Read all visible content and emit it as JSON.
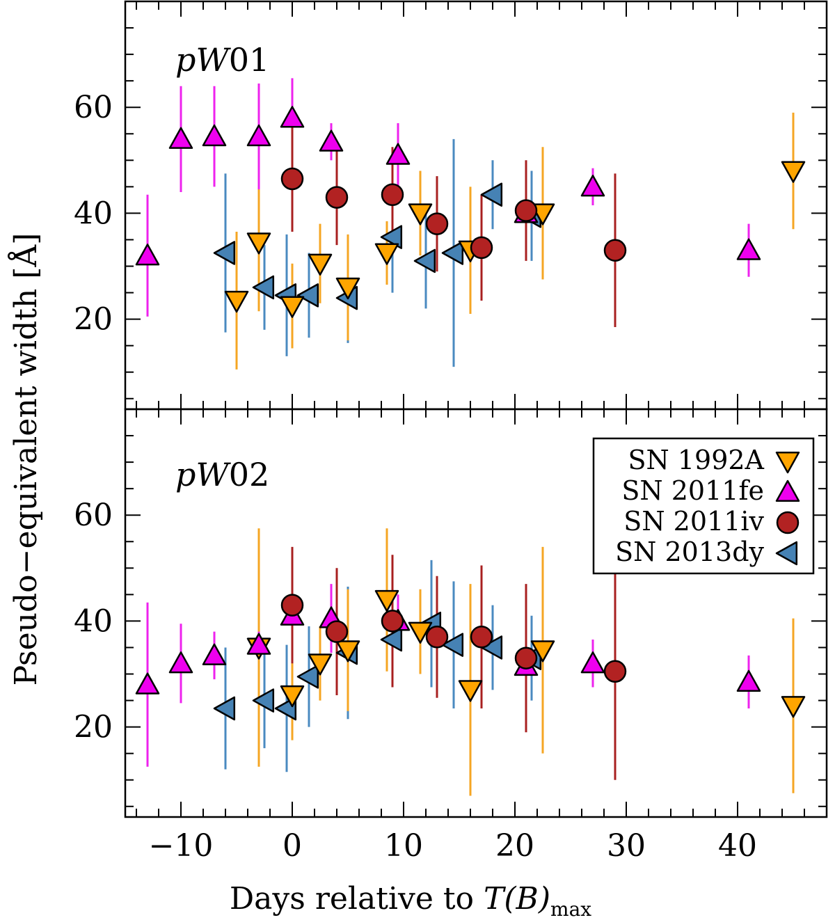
{
  "chart_data": {
    "type": "scatter",
    "xlabel": "Days relative to T(B)max",
    "xlabel_parts": {
      "prefix": "Days relative to ",
      "var": "T(B)",
      "sub": "max"
    },
    "ylabel": "Pseudo−equivalent width [Å]",
    "xlim": [
      -15,
      48
    ],
    "x_ticks": [
      -10,
      0,
      10,
      20,
      30,
      40
    ],
    "x_tick_labels": [
      "−10",
      "0",
      "10",
      "20",
      "30",
      "40"
    ],
    "legend": {
      "placement": "upper-right of bottom panel",
      "entries": [
        {
          "label": "SN 1992A",
          "series": "SN 1992A"
        },
        {
          "label": "SN 2011fe",
          "series": "SN 2011fe"
        },
        {
          "label": "SN 2011iv",
          "series": "SN 2011iv"
        },
        {
          "label": "SN 2013dy",
          "series": "SN 2013dy"
        }
      ]
    },
    "series_styles": [
      {
        "name": "SN 1992A",
        "marker": "triangle-down",
        "color": "#FFA500",
        "errcolor": "#F5A623"
      },
      {
        "name": "SN 2011fe",
        "marker": "triangle-up",
        "color": "#EE00EE",
        "errcolor": "#EE22EE"
      },
      {
        "name": "SN 2011iv",
        "marker": "circle",
        "color": "#B22222",
        "errcolor": "#A82020"
      },
      {
        "name": "SN 2013dy",
        "marker": "triangle-left",
        "color": "#4682B4",
        "errcolor": "#4A8AC0"
      }
    ],
    "panels": [
      {
        "label": "pW01",
        "label_parts": {
          "ital": "pW",
          "rest": "01"
        },
        "ylim": [
          3,
          80
        ],
        "y_ticks": [
          20,
          40,
          60
        ],
        "y_tick_labels": [
          "20",
          "40",
          "60"
        ],
        "series": [
          {
            "name": "SN 1992A",
            "points": [
              {
                "x": -5.0,
                "y": 23.5,
                "err": 13.0
              },
              {
                "x": -3.0,
                "y": 34.5,
                "err": 13.0
              },
              {
                "x": 0.0,
                "y": 22.5,
                "err": 8.0
              },
              {
                "x": 2.5,
                "y": 30.5,
                "err": 7.5
              },
              {
                "x": 5.0,
                "y": 26.0,
                "err": 10.0
              },
              {
                "x": 8.5,
                "y": 32.5,
                "err": 6.0
              },
              {
                "x": 11.5,
                "y": 40.0,
                "err": 8.0
              },
              {
                "x": 16.0,
                "y": 33.0,
                "err": 12.0
              },
              {
                "x": 22.5,
                "y": 40.0,
                "err": 12.5
              },
              {
                "x": 45.0,
                "y": 48.0,
                "err": 11.0
              }
            ]
          },
          {
            "name": "SN 2011fe",
            "points": [
              {
                "x": -13.0,
                "y": 32.0,
                "err": 11.5
              },
              {
                "x": -10.0,
                "y": 54.0,
                "err": 10.0
              },
              {
                "x": -7.0,
                "y": 54.5,
                "err": 9.5
              },
              {
                "x": -3.0,
                "y": 54.5,
                "err": 10.0
              },
              {
                "x": 0.0,
                "y": 58.0,
                "err": 7.5
              },
              {
                "x": 3.5,
                "y": 53.5,
                "err": 3.5
              },
              {
                "x": 9.5,
                "y": 51.0,
                "err": 6.0
              },
              {
                "x": 21.0,
                "y": 40.0,
                "err": 8.0
              },
              {
                "x": 27.0,
                "y": 45.0,
                "err": 3.5
              },
              {
                "x": 41.0,
                "y": 33.0,
                "err": 5.0
              }
            ]
          },
          {
            "name": "SN 2011iv",
            "points": [
              {
                "x": 0.0,
                "y": 46.5,
                "err": 10.0
              },
              {
                "x": 4.0,
                "y": 43.0,
                "err": 9.0
              },
              {
                "x": 9.0,
                "y": 43.5,
                "err": 9.0
              },
              {
                "x": 13.0,
                "y": 38.0,
                "err": 9.0
              },
              {
                "x": 17.0,
                "y": 33.5,
                "err": 10.0
              },
              {
                "x": 21.0,
                "y": 40.5,
                "err": 9.5
              },
              {
                "x": 29.0,
                "y": 33.0,
                "err": 14.5
              }
            ]
          },
          {
            "name": "SN 2013dy",
            "points": [
              {
                "x": -6.0,
                "y": 32.5,
                "err": 15.0
              },
              {
                "x": -2.5,
                "y": 26.0,
                "err": 8.0
              },
              {
                "x": -0.5,
                "y": 24.5,
                "err": 11.5
              },
              {
                "x": 1.5,
                "y": 24.5,
                "err": 8.0
              },
              {
                "x": 5.0,
                "y": 24.0,
                "err": 8.5
              },
              {
                "x": 9.0,
                "y": 35.5,
                "err": 10.5
              },
              {
                "x": 12.0,
                "y": 31.0,
                "err": 9.0
              },
              {
                "x": 14.5,
                "y": 32.5,
                "err": 21.5
              },
              {
                "x": 18.0,
                "y": 43.5,
                "err": 6.5
              },
              {
                "x": 21.5,
                "y": 39.5,
                "err": 8.5
              }
            ]
          }
        ]
      },
      {
        "label": "pW02",
        "label_parts": {
          "ital": "pW",
          "rest": "02"
        },
        "ylim": [
          3,
          80
        ],
        "y_ticks": [
          20,
          40,
          60
        ],
        "y_tick_labels": [
          "20",
          "40",
          "60"
        ],
        "series": [
          {
            "name": "SN 1992A",
            "points": [
              {
                "x": -3.0,
                "y": 35.0,
                "err": 22.5
              },
              {
                "x": 0.0,
                "y": 26.0,
                "err": 8.5
              },
              {
                "x": 2.5,
                "y": 32.0,
                "err": 7.0
              },
              {
                "x": 5.0,
                "y": 34.5,
                "err": 11.5
              },
              {
                "x": 8.5,
                "y": 44.0,
                "err": 13.5
              },
              {
                "x": 11.5,
                "y": 38.0,
                "err": 8.0
              },
              {
                "x": 16.0,
                "y": 27.0,
                "err": 20.0
              },
              {
                "x": 22.5,
                "y": 34.5,
                "err": 19.5
              },
              {
                "x": 45.0,
                "y": 24.0,
                "err": 16.5
              }
            ]
          },
          {
            "name": "SN 2011fe",
            "points": [
              {
                "x": -13.0,
                "y": 28.0,
                "err": 15.5
              },
              {
                "x": -10.0,
                "y": 32.0,
                "err": 7.5
              },
              {
                "x": -7.0,
                "y": 33.5,
                "err": 4.5
              },
              {
                "x": -3.0,
                "y": 35.5,
                "err": 2.5
              },
              {
                "x": 0.0,
                "y": 41.0,
                "err": 5.5
              },
              {
                "x": 3.5,
                "y": 40.5,
                "err": 6.5
              },
              {
                "x": 9.5,
                "y": 40.0,
                "err": 5.0
              },
              {
                "x": 21.0,
                "y": 31.5,
                "err": 5.0
              },
              {
                "x": 27.0,
                "y": 32.0,
                "err": 4.5
              },
              {
                "x": 41.0,
                "y": 28.5,
                "err": 5.0
              }
            ]
          },
          {
            "name": "SN 2011iv",
            "points": [
              {
                "x": 0.0,
                "y": 43.0,
                "err": 11.0
              },
              {
                "x": 4.0,
                "y": 38.0,
                "err": 12.0
              },
              {
                "x": 9.0,
                "y": 40.0,
                "err": 12.5
              },
              {
                "x": 13.0,
                "y": 37.0,
                "err": 11.5
              },
              {
                "x": 17.0,
                "y": 37.0,
                "err": 13.5
              },
              {
                "x": 21.0,
                "y": 33.0,
                "err": 14.0
              },
              {
                "x": 29.0,
                "y": 30.5,
                "err": 20.5
              }
            ]
          },
          {
            "name": "SN 2013dy",
            "points": [
              {
                "x": -6.0,
                "y": 23.5,
                "err": 11.5
              },
              {
                "x": -2.5,
                "y": 25.0,
                "err": 9.0
              },
              {
                "x": -0.5,
                "y": 23.5,
                "err": 12.0
              },
              {
                "x": 1.5,
                "y": 29.5,
                "err": 9.5
              },
              {
                "x": 5.0,
                "y": 34.0,
                "err": 12.5
              },
              {
                "x": 9.0,
                "y": 36.5,
                "err": 8.0
              },
              {
                "x": 12.5,
                "y": 39.5,
                "err": 12.0
              },
              {
                "x": 14.5,
                "y": 35.5,
                "err": 12.0
              },
              {
                "x": 18.0,
                "y": 35.0,
                "err": 8.0
              },
              {
                "x": 21.5,
                "y": 33.0,
                "err": 8.0
              }
            ]
          }
        ]
      }
    ]
  }
}
